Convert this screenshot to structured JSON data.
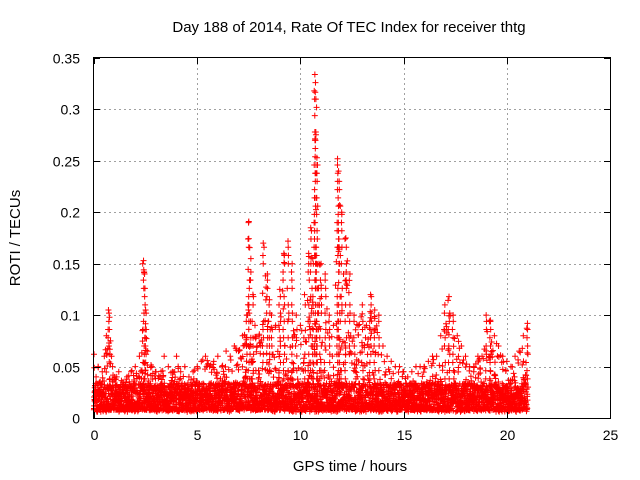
{
  "chart_data": {
    "type": "scatter",
    "title": "Day 188 of 2014, Rate Of TEC Index for receiver thtg",
    "xlabel": "GPS time / hours",
    "ylabel": "ROTI / TECUs",
    "xlim": [
      0,
      25
    ],
    "ylim": [
      0,
      0.35
    ],
    "x_ticks": [
      0,
      5,
      10,
      15,
      20,
      25
    ],
    "x_tick_labels": [
      "0",
      "5",
      "10",
      "15",
      "20",
      "25"
    ],
    "y_ticks": [
      0,
      0.05,
      0.1,
      0.15,
      0.2,
      0.25,
      0.3,
      0.35
    ],
    "y_tick_labels": [
      "0",
      "0.05",
      "0.1",
      "0.15",
      "0.2",
      "0.25",
      "0.3",
      "0.35"
    ],
    "grid": true,
    "marker": "+",
    "color": "#ff0000",
    "series": [
      {
        "name": "ROTI",
        "x": [
          0.0,
          0.1,
          0.2,
          0.3,
          0.4,
          0.5,
          0.6,
          0.7,
          0.75,
          0.8,
          0.85,
          0.9,
          1.0,
          1.2,
          1.4,
          1.6,
          1.8,
          2.0,
          2.2,
          2.35,
          2.4,
          2.45,
          2.5,
          2.6,
          2.8,
          3.0,
          3.2,
          3.4,
          3.6,
          3.8,
          4.0,
          4.2,
          4.4,
          4.6,
          4.8,
          5.0,
          5.2,
          5.4,
          5.6,
          5.8,
          6.0,
          6.2,
          6.4,
          6.6,
          6.8,
          7.0,
          7.2,
          7.4,
          7.5,
          7.6,
          7.7,
          7.8,
          8.0,
          8.2,
          8.4,
          8.5,
          8.6,
          8.8,
          9.0,
          9.2,
          9.4,
          9.6,
          9.8,
          10.0,
          10.2,
          10.4,
          10.5,
          10.6,
          10.7,
          10.75,
          10.8,
          10.9,
          11.0,
          11.2,
          11.4,
          11.6,
          11.8,
          11.85,
          11.9,
          12.0,
          12.2,
          12.4,
          12.6,
          12.8,
          13.0,
          13.2,
          13.4,
          13.6,
          13.8,
          14.0,
          14.2,
          14.4,
          14.6,
          14.8,
          15.0,
          15.2,
          15.4,
          15.6,
          15.8,
          16.0,
          16.2,
          16.4,
          16.6,
          16.8,
          17.0,
          17.2,
          17.4,
          17.6,
          17.8,
          18.0,
          18.2,
          18.4,
          18.6,
          18.8,
          19.0,
          19.2,
          19.4,
          19.6,
          19.8,
          20.0,
          20.2,
          20.4,
          20.6,
          20.8,
          21.0
        ],
        "y": [
          0.062,
          0.04,
          0.05,
          0.035,
          0.045,
          0.06,
          0.08,
          0.105,
          0.098,
          0.075,
          0.06,
          0.05,
          0.04,
          0.045,
          0.035,
          0.04,
          0.045,
          0.05,
          0.06,
          0.085,
          0.153,
          0.14,
          0.105,
          0.065,
          0.05,
          0.045,
          0.04,
          0.06,
          0.05,
          0.045,
          0.06,
          0.045,
          0.05,
          0.04,
          0.045,
          0.05,
          0.055,
          0.06,
          0.05,
          0.055,
          0.06,
          0.05,
          0.065,
          0.06,
          0.07,
          0.065,
          0.08,
          0.1,
          0.191,
          0.155,
          0.12,
          0.09,
          0.08,
          0.17,
          0.14,
          0.115,
          0.1,
          0.09,
          0.125,
          0.16,
          0.172,
          0.15,
          0.1,
          0.09,
          0.12,
          0.16,
          0.185,
          0.155,
          0.334,
          0.31,
          0.253,
          0.15,
          0.15,
          0.14,
          0.1,
          0.09,
          0.252,
          0.24,
          0.207,
          0.2,
          0.175,
          0.14,
          0.1,
          0.09,
          0.11,
          0.09,
          0.12,
          0.105,
          0.1,
          0.07,
          0.06,
          0.055,
          0.05,
          0.05,
          0.045,
          0.04,
          0.045,
          0.05,
          0.05,
          0.05,
          0.055,
          0.06,
          0.06,
          0.08,
          0.11,
          0.118,
          0.1,
          0.08,
          0.07,
          0.06,
          0.05,
          0.05,
          0.06,
          0.06,
          0.1,
          0.095,
          0.08,
          0.07,
          0.06,
          0.055,
          0.05,
          0.06,
          0.065,
          0.08,
          0.092
        ]
      }
    ]
  }
}
